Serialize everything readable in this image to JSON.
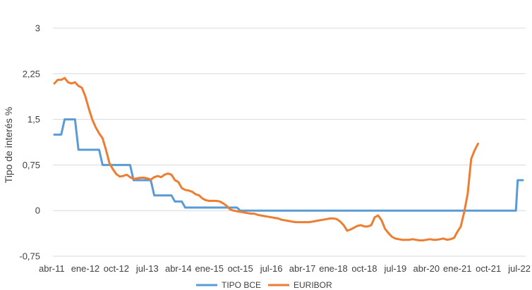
{
  "chart_data": {
    "type": "line",
    "title": "",
    "xlabel": "",
    "ylabel": "Tipo de interés %",
    "ylim": [
      -0.75,
      3
    ],
    "yticks": [
      "-0,75",
      "0",
      "0,75",
      "1,5",
      "2,25",
      "3"
    ],
    "ytick_values": [
      -0.75,
      0,
      0.75,
      1.5,
      2.25,
      3
    ],
    "xticks": [
      "abr-11",
      "ene-12",
      "oct-12",
      "jul-13",
      "abr-14",
      "ene-15",
      "oct-15",
      "jul-16",
      "abr-17",
      "ene-18",
      "oct-18",
      "jul-19",
      "abr-20",
      "ene-21",
      "oct-21",
      "jul-22"
    ],
    "xtick_months": [
      0,
      9,
      18,
      27,
      36,
      45,
      54,
      63,
      72,
      81,
      90,
      99,
      108,
      117,
      126,
      135
    ],
    "grid": true,
    "legend_position": "bottom",
    "series": [
      {
        "name": "TIPO BCE",
        "color": "#5b9bd5",
        "points": [
          [
            0,
            1.25
          ],
          [
            2,
            1.25
          ],
          [
            3,
            1.5
          ],
          [
            6,
            1.5
          ],
          [
            7,
            1.0
          ],
          [
            13,
            1.0
          ],
          [
            14,
            0.75
          ],
          [
            22,
            0.75
          ],
          [
            23,
            0.5
          ],
          [
            28,
            0.5
          ],
          [
            29,
            0.25
          ],
          [
            34,
            0.25
          ],
          [
            35,
            0.15
          ],
          [
            37,
            0.15
          ],
          [
            38,
            0.05
          ],
          [
            53,
            0.05
          ],
          [
            54,
            0.0
          ],
          [
            134,
            0.0
          ],
          [
            134.5,
            0.5
          ],
          [
            136,
            0.5
          ]
        ]
      },
      {
        "name": "EURIBOR",
        "color": "#ed7d31",
        "points": [
          [
            0,
            2.09
          ],
          [
            1,
            2.15
          ],
          [
            2,
            2.15
          ],
          [
            3,
            2.18
          ],
          [
            4,
            2.11
          ],
          [
            5,
            2.09
          ],
          [
            6,
            2.11
          ],
          [
            7,
            2.05
          ],
          [
            8,
            2.02
          ],
          [
            9,
            1.88
          ],
          [
            10,
            1.68
          ],
          [
            11,
            1.5
          ],
          [
            12,
            1.37
          ],
          [
            13,
            1.27
          ],
          [
            14,
            1.19
          ],
          [
            15,
            1.0
          ],
          [
            16,
            0.78
          ],
          [
            17,
            0.68
          ],
          [
            18,
            0.6
          ],
          [
            19,
            0.56
          ],
          [
            20,
            0.57
          ],
          [
            21,
            0.59
          ],
          [
            22,
            0.55
          ],
          [
            23,
            0.52
          ],
          [
            24,
            0.53
          ],
          [
            25,
            0.54
          ],
          [
            26,
            0.54
          ],
          [
            27,
            0.53
          ],
          [
            28,
            0.51
          ],
          [
            29,
            0.55
          ],
          [
            30,
            0.57
          ],
          [
            31,
            0.55
          ],
          [
            32,
            0.59
          ],
          [
            33,
            0.61
          ],
          [
            34,
            0.59
          ],
          [
            35,
            0.5
          ],
          [
            36,
            0.47
          ],
          [
            37,
            0.37
          ],
          [
            38,
            0.34
          ],
          [
            39,
            0.33
          ],
          [
            40,
            0.31
          ],
          [
            41,
            0.27
          ],
          [
            42,
            0.25
          ],
          [
            43,
            0.2
          ],
          [
            44,
            0.17
          ],
          [
            45,
            0.16
          ],
          [
            46,
            0.16
          ],
          [
            47,
            0.16
          ],
          [
            48,
            0.15
          ],
          [
            49,
            0.12
          ],
          [
            50,
            0.08
          ],
          [
            51,
            0.02
          ],
          [
            52,
            0.0
          ],
          [
            53,
            -0.01
          ],
          [
            54,
            -0.02
          ],
          [
            55,
            -0.03
          ],
          [
            56,
            -0.04
          ],
          [
            57,
            -0.05
          ],
          [
            58,
            -0.05
          ],
          [
            59,
            -0.07
          ],
          [
            60,
            -0.08
          ],
          [
            61,
            -0.09
          ],
          [
            62,
            -0.1
          ],
          [
            63,
            -0.11
          ],
          [
            64,
            -0.12
          ],
          [
            65,
            -0.13
          ],
          [
            66,
            -0.15
          ],
          [
            67,
            -0.16
          ],
          [
            68,
            -0.17
          ],
          [
            69,
            -0.18
          ],
          [
            70,
            -0.19
          ],
          [
            71,
            -0.19
          ],
          [
            72,
            -0.19
          ],
          [
            73,
            -0.19
          ],
          [
            74,
            -0.19
          ],
          [
            75,
            -0.18
          ],
          [
            76,
            -0.17
          ],
          [
            77,
            -0.16
          ],
          [
            78,
            -0.15
          ],
          [
            79,
            -0.14
          ],
          [
            80,
            -0.13
          ],
          [
            81,
            -0.13
          ],
          [
            82,
            -0.14
          ],
          [
            83,
            -0.18
          ],
          [
            84,
            -0.24
          ],
          [
            85,
            -0.33
          ],
          [
            86,
            -0.31
          ],
          [
            87,
            -0.28
          ],
          [
            88,
            -0.25
          ],
          [
            89,
            -0.24
          ],
          [
            90,
            -0.26
          ],
          [
            91,
            -0.26
          ],
          [
            92,
            -0.24
          ],
          [
            93,
            -0.11
          ],
          [
            94,
            -0.08
          ],
          [
            95,
            -0.16
          ],
          [
            96,
            -0.3
          ],
          [
            97,
            -0.37
          ],
          [
            98,
            -0.43
          ],
          [
            99,
            -0.46
          ],
          [
            100,
            -0.47
          ],
          [
            101,
            -0.48
          ],
          [
            102,
            -0.48
          ],
          [
            103,
            -0.48
          ],
          [
            104,
            -0.47
          ],
          [
            105,
            -0.48
          ],
          [
            106,
            -0.49
          ],
          [
            107,
            -0.49
          ],
          [
            108,
            -0.48
          ],
          [
            109,
            -0.47
          ],
          [
            110,
            -0.48
          ],
          [
            111,
            -0.48
          ],
          [
            112,
            -0.47
          ],
          [
            113,
            -0.46
          ],
          [
            114,
            -0.48
          ],
          [
            115,
            -0.47
          ],
          [
            116,
            -0.45
          ],
          [
            117,
            -0.35
          ],
          [
            118,
            -0.26
          ],
          [
            119,
            -0.02
          ],
          [
            120,
            0.28
          ],
          [
            121,
            0.85
          ],
          [
            122,
            0.99
          ],
          [
            123,
            1.1
          ]
        ]
      }
    ]
  }
}
